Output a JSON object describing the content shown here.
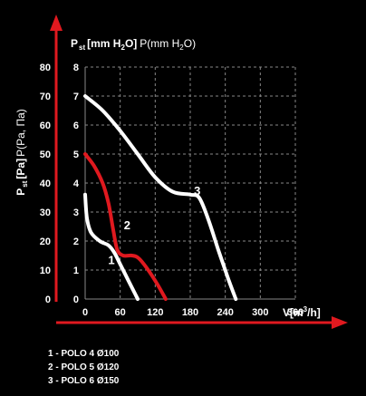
{
  "chart_data": {
    "type": "line",
    "title": "",
    "x_axis": {
      "label_main": "V[m",
      "label_sup": "3",
      "label_end": "/h]",
      "range": [
        0,
        360
      ],
      "ticks": [
        "0",
        "60",
        "120",
        "180",
        "240",
        "300",
        "360"
      ],
      "tick_values": [
        0,
        60,
        120,
        180,
        240,
        300,
        360
      ]
    },
    "y_axis_left": {
      "label_P": "P",
      "label_sub": "st",
      "label_unit": "[Pa]",
      "label_alt": "P(Pa, Па)",
      "range": [
        0,
        80
      ],
      "ticks": [
        "0",
        "10",
        "20",
        "30",
        "40",
        "50",
        "60",
        "70",
        "80"
      ],
      "tick_values": [
        0,
        10,
        20,
        30,
        40,
        50,
        60,
        70,
        80
      ]
    },
    "y_axis_right": {
      "label_P": "P",
      "label_sub": "st",
      "label_unit": "[mm H",
      "label_unit_sub": "2",
      "label_unit_end": "O]",
      "label_alt": "P(mm H",
      "label_alt_sub": "2",
      "label_alt_end": "O)",
      "range": [
        0,
        8
      ],
      "ticks": [
        "0",
        "1",
        "2",
        "3",
        "4",
        "5",
        "6",
        "7",
        "8"
      ],
      "tick_values": [
        0,
        1,
        2,
        3,
        4,
        5,
        6,
        7,
        8
      ]
    },
    "grid": true,
    "series": [
      {
        "name": "1",
        "color": "#ffffff",
        "points": [
          [
            0,
            36
          ],
          [
            3,
            28
          ],
          [
            10,
            23
          ],
          [
            25,
            20
          ],
          [
            40,
            18.5
          ],
          [
            50,
            16
          ],
          [
            60,
            12
          ],
          [
            75,
            6
          ],
          [
            85,
            2
          ],
          [
            90,
            0
          ]
        ]
      },
      {
        "name": "2",
        "color": "#e0191f",
        "points": [
          [
            0,
            50
          ],
          [
            15,
            46
          ],
          [
            30,
            40
          ],
          [
            40,
            33
          ],
          [
            48,
            24
          ],
          [
            55,
            17
          ],
          [
            65,
            15
          ],
          [
            80,
            15
          ],
          [
            92,
            14
          ],
          [
            108,
            10
          ],
          [
            124,
            5
          ],
          [
            138,
            0
          ]
        ]
      },
      {
        "name": "3",
        "color": "#ffffff",
        "points": [
          [
            0,
            70
          ],
          [
            30,
            65
          ],
          [
            60,
            58
          ],
          [
            90,
            50
          ],
          [
            120,
            42
          ],
          [
            150,
            37
          ],
          [
            180,
            36
          ],
          [
            195,
            35
          ],
          [
            210,
            28
          ],
          [
            228,
            17
          ],
          [
            245,
            7
          ],
          [
            258,
            0
          ]
        ]
      }
    ],
    "curve_labels": [
      {
        "text": "1",
        "x": 45,
        "y": 12
      },
      {
        "text": "2",
        "x": 72,
        "y": 24
      },
      {
        "text": "3",
        "x": 192,
        "y": 36
      }
    ],
    "legend": [
      "1 - POLO 4 Ø100",
      "2 - POLO 5 Ø120",
      "3 - POLO 6 Ø150"
    ],
    "axis_color": "#e0191f"
  }
}
